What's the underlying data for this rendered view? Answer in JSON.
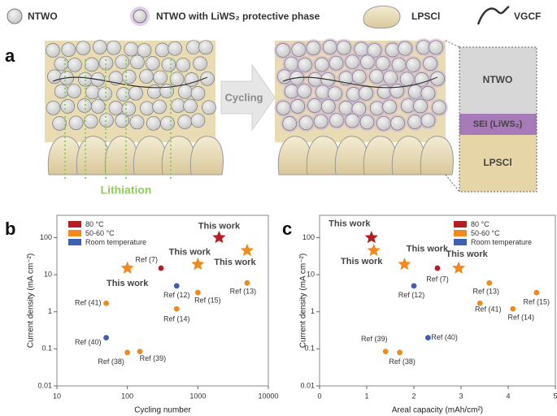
{
  "legend": {
    "items": [
      "NTWO",
      "NTWO with LiWS₂ protective phase",
      "LPSCl",
      "VGCF"
    ]
  },
  "panel_a": {
    "label": "a",
    "arrow": "Cycling",
    "lithiation": "Lithiation",
    "layers": [
      "NTWO",
      "SEI (LiWS₂)",
      "LPSCl"
    ]
  },
  "chart_data": [
    {
      "type": "scatter",
      "panel_label": "b",
      "x_label": "Cycling number",
      "y_label": "Current density (mA cm⁻²)",
      "xscale": "log",
      "yscale": "log",
      "xlim": [
        10,
        10000
      ],
      "ylim": [
        0.01,
        400
      ],
      "xticks": [
        10,
        100,
        1000,
        10000
      ],
      "yticks": [
        0.01,
        0.1,
        1,
        10,
        100
      ],
      "legend_position": "upper left",
      "series": [
        {
          "name": "80 °C",
          "color": "#b21e23",
          "x": [
            2000,
            300
          ],
          "values": [
            100,
            15
          ],
          "labels": [
            "This work",
            "Ref (7)"
          ],
          "markers": [
            "star",
            "circle"
          ]
        },
        {
          "name": "50-60 °C",
          "color": "#f08a1e",
          "x": [
            100,
            1000,
            5000,
            1000,
            500,
            5000,
            50,
            100,
            150
          ],
          "values": [
            15,
            19,
            45,
            3.3,
            1.2,
            6,
            1.7,
            0.08,
            0.085
          ],
          "labels": [
            "This work",
            "This work",
            "This work",
            "Ref (15)",
            "Ref (14)",
            "Ref (13)",
            "Ref (41)",
            "Ref (38)",
            "Ref (39)"
          ],
          "markers": [
            "star",
            "star",
            "star",
            "circle",
            "circle",
            "circle",
            "circle",
            "circle",
            "circle"
          ]
        },
        {
          "name": "Room temperature",
          "color": "#3f5fb0",
          "x": [
            500,
            50
          ],
          "values": [
            5,
            0.2
          ],
          "labels": [
            "Ref (12)",
            "Ref (40)"
          ],
          "markers": [
            "circle",
            "circle"
          ]
        }
      ]
    },
    {
      "type": "scatter",
      "panel_label": "c",
      "x_label": "Areal capacity (mAh/cm²)",
      "y_label": "Current density (mA cm⁻²)",
      "xscale": "linear",
      "yscale": "log",
      "xlim": [
        0,
        5
      ],
      "ylim": [
        0.01,
        400
      ],
      "xticks": [
        0,
        1,
        2,
        3,
        4,
        5
      ],
      "yticks": [
        0.01,
        0.1,
        1,
        10,
        100
      ],
      "legend_position": "upper right",
      "series": [
        {
          "name": "80 °C",
          "color": "#b21e23",
          "x": [
            1.1,
            2.5
          ],
          "values": [
            100,
            15
          ],
          "labels": [
            "This work",
            "Ref (7)"
          ],
          "markers": [
            "star",
            "circle"
          ]
        },
        {
          "name": "50-60 °C",
          "color": "#f08a1e",
          "x": [
            1.15,
            1.8,
            2.95,
            3.6,
            3.4,
            4.1,
            4.6,
            1.4,
            1.7
          ],
          "values": [
            45,
            19,
            15,
            6,
            1.7,
            1.2,
            3.3,
            0.085,
            0.08
          ],
          "labels": [
            "This work",
            "This work",
            "This work",
            "Ref (13)",
            "Ref (41)",
            "Ref (14)",
            "Ref (15)",
            "Ref (39)",
            "Ref (38)"
          ],
          "markers": [
            "star",
            "star",
            "star",
            "circle",
            "circle",
            "circle",
            "circle",
            "circle",
            "circle"
          ]
        },
        {
          "name": "Room temperature",
          "color": "#3f5fb0",
          "x": [
            2.0,
            2.3
          ],
          "values": [
            5,
            0.2
          ],
          "labels": [
            "Ref (12)",
            "Ref (40)"
          ],
          "markers": [
            "circle",
            "circle"
          ]
        }
      ]
    }
  ]
}
